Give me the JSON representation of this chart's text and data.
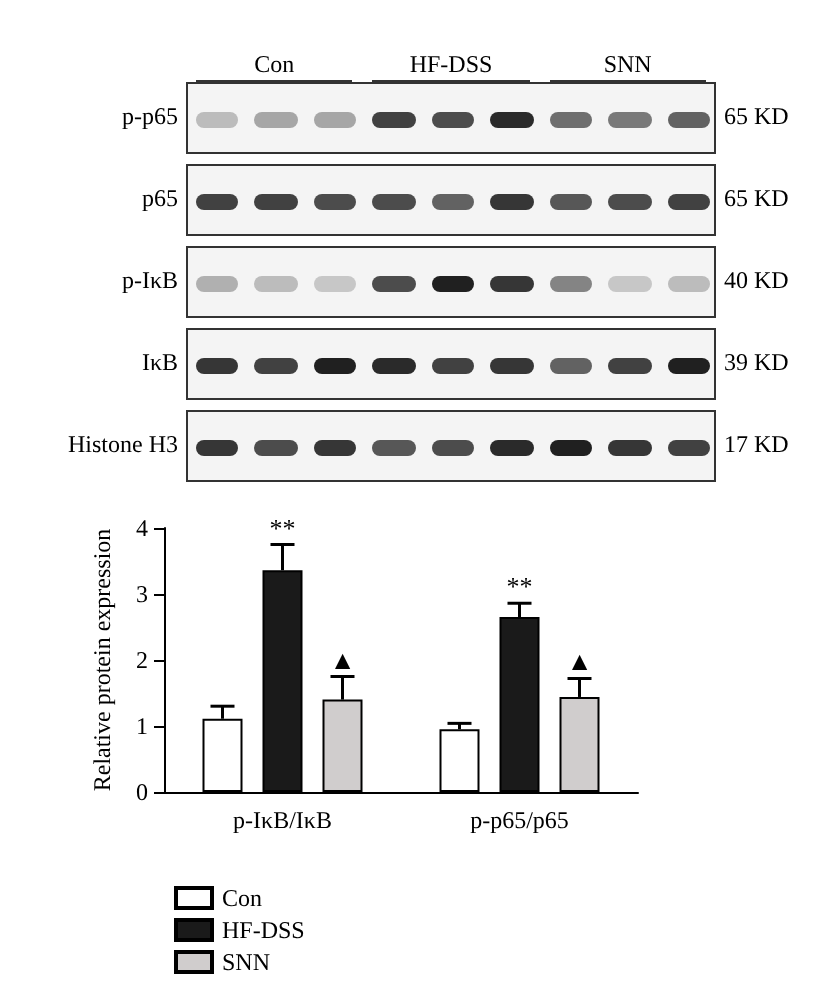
{
  "chart_data": {
    "type": "bar",
    "ylabel": "Relative protein expression",
    "categories": [
      "p-IκB/IκB",
      "p-p65/p65"
    ],
    "series": [
      {
        "name": "Con",
        "color": "#ffffff",
        "values": [
          1.11,
          0.95
        ],
        "errors": [
          0.19,
          0.09
        ]
      },
      {
        "name": "HF-DSS",
        "color": "#1a1a1a",
        "values": [
          3.36,
          2.65
        ],
        "errors": [
          0.39,
          0.21
        ],
        "value_labels": [
          "**",
          "**"
        ]
      },
      {
        "name": "SNN",
        "color": "#d0cdcd",
        "values": [
          1.4,
          1.44
        ],
        "errors": [
          0.35,
          0.28
        ],
        "value_labels": [
          "▲",
          "▲"
        ]
      }
    ],
    "ylim": [
      0,
      4
    ],
    "yticks": [
      0,
      1,
      2,
      3,
      4
    ],
    "grid": false,
    "legend": "bottom left",
    "annotations": [
      "Con",
      "HF-DSS",
      "SNN",
      "p-p65",
      "65 KD",
      "p65",
      "65 KD",
      "p-IκB",
      "40 KD",
      "IκB",
      "39 KD",
      "Histone H3",
      "17 KD"
    ]
  }
}
